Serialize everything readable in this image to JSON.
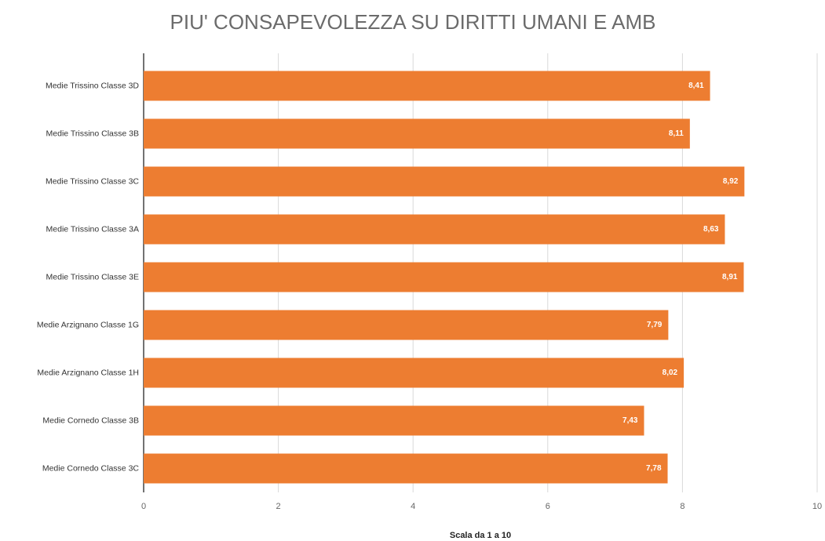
{
  "chart_data": {
    "type": "bar",
    "orientation": "horizontal",
    "title": "PIU' CONSAPEVOLEZZA SU DIRITTI UMANI E AMB",
    "x_label": "Scala da 1 a 10",
    "categories": [
      "Medie Trissino Classe 3D",
      "Medie Trissino Classe 3B",
      "Medie Trissino Classe 3C",
      "Medie Trissino Classe 3A",
      "Medie Trissino Classe 3E",
      "Medie Arzignano Classe 1G",
      "Medie Arzignano Classe 1H",
      "Medie Cornedo Classe 3B",
      "Medie Cornedo Classe 3C"
    ],
    "values": [
      8.41,
      8.11,
      8.92,
      8.63,
      8.91,
      7.79,
      8.02,
      7.43,
      7.78
    ],
    "value_labels": [
      "8,41",
      "8,11",
      "8,92",
      "8,63",
      "8,91",
      "7,79",
      "8,02",
      "7,43",
      "7,78"
    ],
    "color": "#ed7d31",
    "xlim": [
      0,
      10
    ],
    "xticks": [
      0,
      2,
      4,
      6,
      8,
      10
    ],
    "grid": true
  }
}
